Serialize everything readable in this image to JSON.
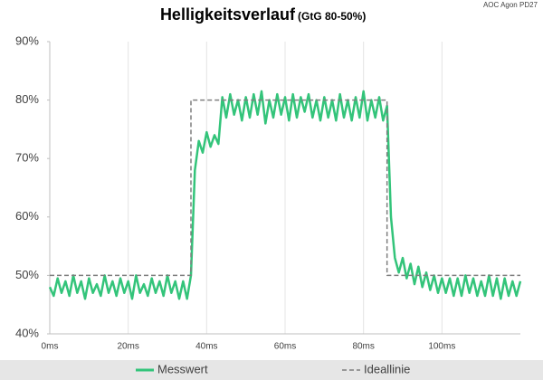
{
  "chart_data": {
    "type": "line",
    "title": "Helligkeitsverlauf",
    "subtitle": "(GtG 80-50%)",
    "annotation": "AOC Agon PD27",
    "xlim": [
      0,
      120
    ],
    "xticks": [
      {
        "value": 0,
        "label": "0ms"
      },
      {
        "value": 20,
        "label": "20ms"
      },
      {
        "value": 40,
        "label": "40ms"
      },
      {
        "value": 60,
        "label": "60ms"
      },
      {
        "value": 80,
        "label": "80ms"
      },
      {
        "value": 100,
        "label": "100ms"
      }
    ],
    "ylim": [
      40,
      90
    ],
    "yticks": [
      {
        "value": 40,
        "label": "40%"
      },
      {
        "value": 50,
        "label": "50%"
      },
      {
        "value": 60,
        "label": "60%"
      },
      {
        "value": 70,
        "label": "70%"
      },
      {
        "value": 80,
        "label": "80%"
      },
      {
        "value": 90,
        "label": "90%"
      }
    ],
    "grid": true,
    "series": [
      {
        "name": "Messwert",
        "color": "#33c47a",
        "dashed": false,
        "x": [
          0,
          1,
          2,
          3,
          4,
          5,
          6,
          7,
          8,
          9,
          10,
          11,
          12,
          13,
          14,
          15,
          16,
          17,
          18,
          19,
          20,
          21,
          22,
          23,
          24,
          25,
          26,
          27,
          28,
          29,
          30,
          31,
          32,
          33,
          34,
          35,
          36,
          37,
          38,
          39,
          40,
          41,
          42,
          43,
          44,
          45,
          46,
          47,
          48,
          49,
          50,
          51,
          52,
          53,
          54,
          55,
          56,
          57,
          58,
          59,
          60,
          61,
          62,
          63,
          64,
          65,
          66,
          67,
          68,
          69,
          70,
          71,
          72,
          73,
          74,
          75,
          76,
          77,
          78,
          79,
          80,
          81,
          82,
          83,
          84,
          85,
          86,
          87,
          88,
          89,
          90,
          91,
          92,
          93,
          94,
          95,
          96,
          97,
          98,
          99,
          100,
          101,
          102,
          103,
          104,
          105,
          106,
          107,
          108,
          109,
          110,
          111,
          112,
          113,
          114,
          115,
          116,
          117,
          118,
          119,
          120
        ],
        "values": [
          48,
          46.5,
          49.5,
          47,
          49,
          46.5,
          50,
          47,
          49,
          46,
          49.5,
          47,
          48.5,
          46.5,
          50,
          47,
          49,
          46.5,
          49.5,
          47,
          49,
          46,
          50,
          47,
          48.5,
          46.5,
          49.5,
          47,
          49,
          46.5,
          50,
          47,
          49,
          46,
          49,
          46,
          50,
          68,
          73,
          71,
          74.5,
          72,
          74,
          72.5,
          80.5,
          77,
          81,
          77.5,
          80,
          76.5,
          80.5,
          77,
          81,
          77.5,
          81.5,
          76,
          80,
          77,
          81,
          77.5,
          80.5,
          76.5,
          81,
          77,
          80.5,
          78,
          81,
          77,
          80,
          76.5,
          80.5,
          77,
          80,
          76.5,
          81,
          77,
          80,
          76.5,
          80.5,
          77,
          81.5,
          76.5,
          80,
          77,
          80.5,
          76.5,
          79,
          60,
          53,
          50.5,
          53,
          49.5,
          52,
          48.5,
          51.5,
          48,
          50.5,
          47.5,
          50,
          47,
          49.5,
          47,
          49.5,
          46.5,
          49.5,
          46.5,
          50,
          47,
          49.5,
          46.5,
          49,
          46.5,
          50,
          46.5,
          49.5,
          46,
          49.5,
          46.5,
          49,
          46.5,
          49
        ]
      },
      {
        "name": "Ideallinie",
        "color": "#7f7f7f",
        "dashed": true,
        "x": [
          0,
          36,
          36,
          86,
          86,
          120
        ],
        "values": [
          50,
          50,
          80,
          80,
          50,
          50
        ]
      }
    ]
  }
}
